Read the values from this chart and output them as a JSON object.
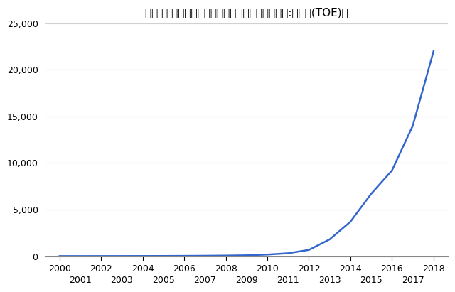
{
  "title": "米国 ー 太陽光発電量（石油換算トン）　［単位:千トン(TOE)］",
  "years": [
    2000,
    2001,
    2002,
    2003,
    2004,
    2005,
    2006,
    2007,
    2008,
    2009,
    2010,
    2011,
    2012,
    2013,
    2014,
    2015,
    2016,
    2017,
    2018
  ],
  "values": [
    8,
    9,
    11,
    13,
    16,
    20,
    28,
    40,
    60,
    90,
    170,
    310,
    670,
    1800,
    3700,
    6700,
    9200,
    14000,
    22000
  ],
  "line_color": "#3366cc",
  "bg_color": "#ffffff",
  "ylim": [
    0,
    25000
  ],
  "yticks": [
    0,
    5000,
    10000,
    15000,
    20000,
    25000
  ],
  "grid_color": "#d0d0d0",
  "title_fontsize": 11,
  "tick_fontsize": 9,
  "xlim_left": 1999.3,
  "xlim_right": 2018.7
}
